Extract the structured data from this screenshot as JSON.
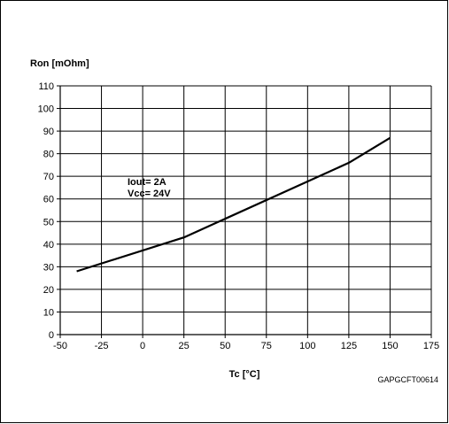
{
  "chart_data": {
    "type": "line",
    "ylabel": "Ron [mOhm]",
    "xlabel": "Tc [°C]",
    "xlim": [
      -50,
      175
    ],
    "ylim": [
      0,
      110
    ],
    "x_ticks": [
      -50,
      -25,
      0,
      25,
      50,
      75,
      100,
      125,
      150,
      175
    ],
    "y_ticks": [
      0,
      10,
      20,
      30,
      40,
      50,
      60,
      70,
      80,
      90,
      100,
      110
    ],
    "grid": true,
    "series": [
      {
        "color": "#000000",
        "x": [
          -40,
          25,
          125,
          150
        ],
        "y": [
          28,
          43,
          76,
          87
        ]
      }
    ],
    "annotations": [
      "Iout= 2A",
      "Vcc= 24V"
    ],
    "figure_code": "GAPGCFT00614"
  }
}
